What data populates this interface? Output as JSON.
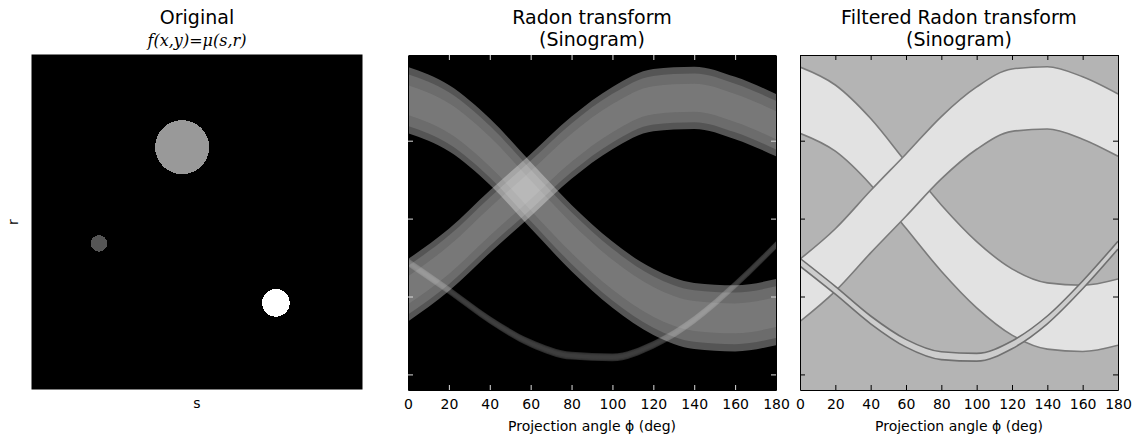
{
  "chart_data": [
    {
      "type": "scatter",
      "title": "Original",
      "subtitle": "f(x,y)=μ(s,r)",
      "x_label": "s",
      "y_label": "r",
      "color": "#000000",
      "x": [
        45.5,
        20.3,
        73.9
      ],
      "values": [
        72.4,
        43.6,
        25.8
      ],
      "sizes": [
        8.2,
        2.5,
        4.2
      ],
      "colors": [
        "#999999",
        "#555555",
        "#ffffff"
      ],
      "xlim": [
        0,
        100
      ],
      "ylim": [
        0,
        100
      ],
      "tick_labels": false
    },
    {
      "type": "area",
      "title": "Radon transform",
      "subtitle": "(Sinogram)",
      "x_label": "Projection angle ϕ (deg)",
      "color": "#000000",
      "x": [
        0,
        20,
        40,
        60,
        80,
        100,
        120,
        140,
        160,
        180
      ],
      "series": [
        {
          "color": "#8e8e8e",
          "line_style": "none",
          "width": 85,
          "values": [
            352,
            329,
            286,
            230,
            175,
            128,
            93,
            75,
            72,
            80
          ]
        },
        {
          "color": "#8e8e8e",
          "line_style": "none",
          "width": 80,
          "values": [
            108,
            147,
            196,
            243,
            291,
            329,
            352,
            355,
            342,
            320
          ]
        },
        {
          "color": "#4a4a4a",
          "line_style": "none",
          "width": 10,
          "values": [
            144,
            108,
            70,
            40,
            24,
            22,
            38,
            70,
            115,
            166
          ]
        }
      ],
      "xlim": [
        0,
        180
      ],
      "ylim": [
        -20,
        410
      ],
      "xticks": [
        0,
        20,
        40,
        60,
        80,
        100,
        120,
        140,
        160,
        180
      ],
      "yticks": [
        0,
        100,
        200,
        300
      ],
      "tick_labels": "x"
    },
    {
      "type": "area",
      "title": "Filtered Radon transform",
      "subtitle": "(Sinogram)",
      "x_label": "Projection angle ϕ (deg)",
      "color": "#b4b4b4",
      "x": [
        0,
        20,
        40,
        60,
        80,
        100,
        120,
        140,
        160,
        180
      ],
      "series": [
        {
          "color": "#e2e2e2",
          "line_style": "solid",
          "width": 85,
          "values": [
            352,
            329,
            286,
            230,
            175,
            128,
            93,
            75,
            72,
            80
          ]
        },
        {
          "color": "#e2e2e2",
          "line_style": "solid",
          "width": 80,
          "values": [
            108,
            147,
            196,
            243,
            291,
            329,
            352,
            355,
            342,
            320
          ]
        },
        {
          "color": "#cdcdcd",
          "line_style": "solid",
          "width": 10,
          "values": [
            144,
            108,
            70,
            40,
            24,
            22,
            38,
            70,
            115,
            166
          ]
        }
      ],
      "xlim": [
        0,
        180
      ],
      "ylim": [
        -20,
        410
      ],
      "xticks": [
        0,
        20,
        40,
        60,
        80,
        100,
        120,
        140,
        160,
        180
      ],
      "yticks": [
        0,
        100,
        200,
        300
      ],
      "tick_labels": "x"
    }
  ]
}
